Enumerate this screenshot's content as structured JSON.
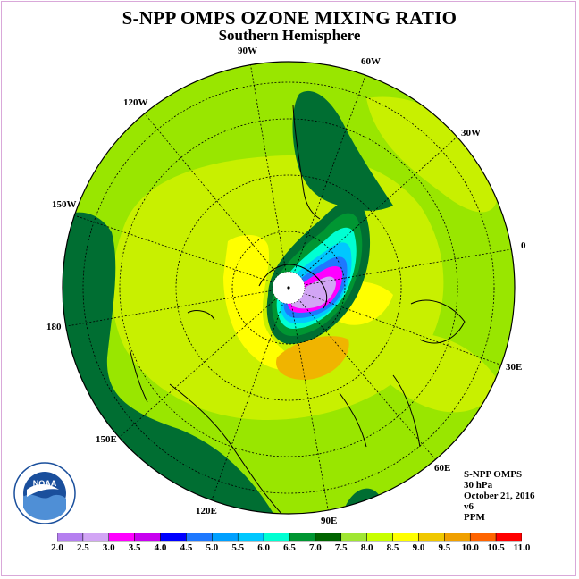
{
  "title": "S-NPP OMPS OZONE MIXING RATIO",
  "subtitle": "Southern Hemisphere",
  "longitude_labels": [
    {
      "text": "90W",
      "id": "lon-90w"
    },
    {
      "text": "60W",
      "id": "lon-60w"
    },
    {
      "text": "120W",
      "id": "lon-120w"
    },
    {
      "text": "30W",
      "id": "lon-30w"
    },
    {
      "text": "150W",
      "id": "lon-150w"
    },
    {
      "text": "0",
      "id": "lon-0"
    },
    {
      "text": "180",
      "id": "lon-180"
    },
    {
      "text": "30E",
      "id": "lon-30e"
    },
    {
      "text": "150E",
      "id": "lon-150e"
    },
    {
      "text": "60E",
      "id": "lon-60e"
    },
    {
      "text": "120E",
      "id": "lon-120e"
    },
    {
      "text": "90E",
      "id": "lon-90e"
    }
  ],
  "info": {
    "instrument": "S-NPP OMPS",
    "level": "30 hPa",
    "date": "October 21, 2016",
    "version": "v6",
    "units": "PPM"
  },
  "logo_text": "NOAA",
  "colorbar": {
    "ticks": [
      "2.0",
      "2.5",
      "3.0",
      "3.5",
      "4.0",
      "4.5",
      "5.0",
      "5.5",
      "6.0",
      "6.5",
      "7.0",
      "7.5",
      "8.0",
      "8.5",
      "9.0",
      "9.5",
      "10.0",
      "10.5",
      "11.0"
    ],
    "colors": [
      "#b57ff0",
      "#d2a5f5",
      "#ff00ff",
      "#c800f0",
      "#0000ff",
      "#1e78ff",
      "#00a0ff",
      "#00c8ff",
      "#00ffd2",
      "#009632",
      "#006400",
      "#a0e632",
      "#c8ff00",
      "#ffff00",
      "#f0c800",
      "#f0a000",
      "#ff6400",
      "#ff0000",
      "#8b5a2b"
    ]
  },
  "palette": {
    "dark_green": "#006e32",
    "green": "#008c3c",
    "light_green": "#99e600",
    "yellow_green": "#c8f000",
    "yellow": "#ffff00",
    "orange": "#f0b400",
    "cyan": "#00ffe0"
  }
}
